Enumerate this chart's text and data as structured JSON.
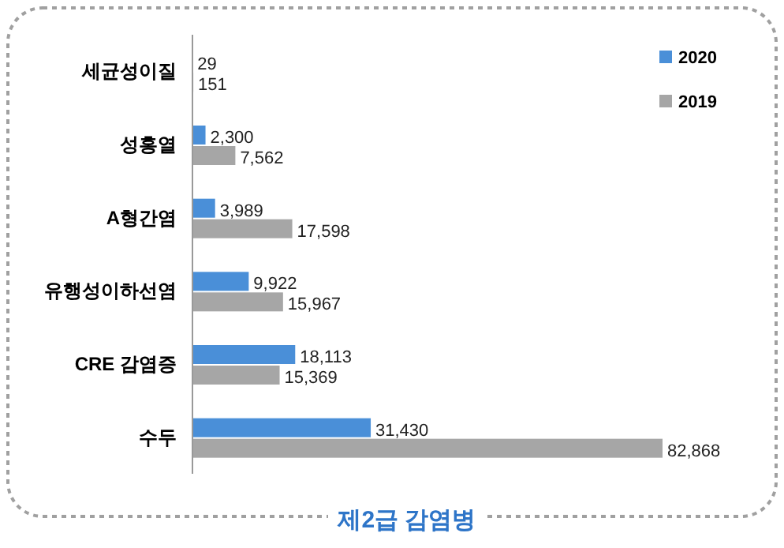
{
  "chart_data": {
    "type": "bar",
    "orientation": "horizontal",
    "title": "제2급 감염병",
    "categories": [
      "세균성이질",
      "성홍열",
      "A형간염",
      "유행성이하선염",
      "CRE 감염증",
      "수두"
    ],
    "series": [
      {
        "name": "2020",
        "color": "#4a8fd8",
        "values": [
          29,
          2300,
          3989,
          9922,
          18113,
          31430
        ],
        "value_labels": [
          "29",
          "2,300",
          "3,989",
          "9,922",
          "18,113",
          "31,430"
        ]
      },
      {
        "name": "2019",
        "color": "#a6a6a6",
        "values": [
          151,
          7562,
          17598,
          15967,
          15369,
          82868
        ],
        "value_labels": [
          "151",
          "7,562",
          "17,598",
          "15,967",
          "15,369",
          "82,868"
        ]
      }
    ],
    "legend": "top right"
  }
}
